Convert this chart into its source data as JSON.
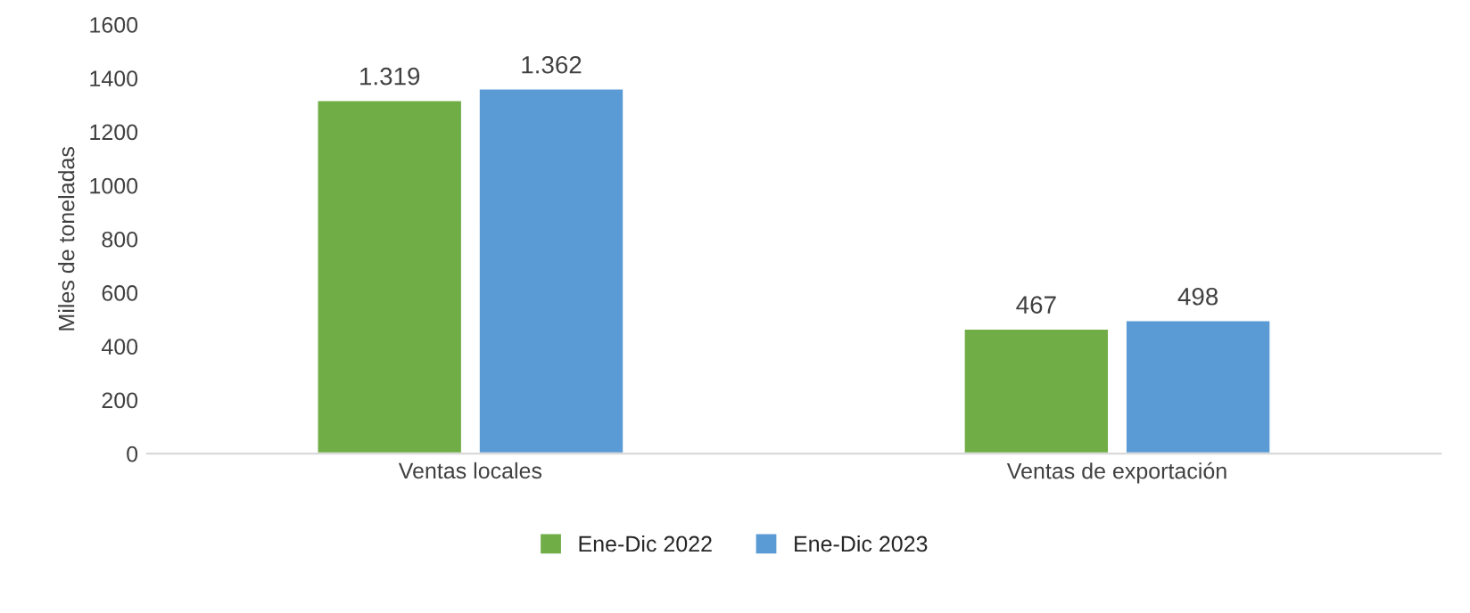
{
  "chart_data": {
    "type": "bar",
    "ylabel": "Miles de toneladas",
    "categories": [
      "Ventas locales",
      "Ventas de exportación"
    ],
    "series": [
      {
        "name": "Ene-Dic 2022",
        "color": "#70ad47",
        "values": [
          1319,
          467
        ],
        "value_labels": [
          "1.319",
          "467"
        ]
      },
      {
        "name": "Ene-Dic 2023",
        "color": "#5b9bd5",
        "values": [
          1362,
          498
        ],
        "value_labels": [
          "1.362",
          "498"
        ]
      }
    ],
    "ylim": [
      0,
      1600
    ],
    "yticks": [
      0,
      200,
      400,
      600,
      800,
      1000,
      1200,
      1400,
      1600
    ],
    "grid": false,
    "legend": "bottom"
  }
}
